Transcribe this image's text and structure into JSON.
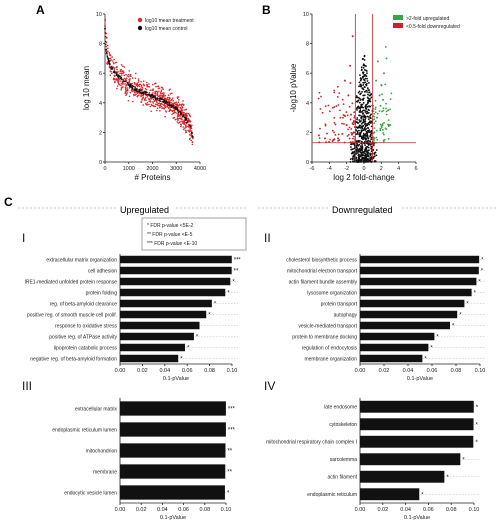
{
  "colors": {
    "treatment": "#e0262b",
    "control": "#111111",
    "upregulated": "#3aa548",
    "downregulated": "#d01f26",
    "bar": "#111111",
    "threshold": "#d01f26"
  },
  "panel_labels": {
    "a": "A",
    "b": "B",
    "c": "C"
  },
  "sections": {
    "up": "Upregulated",
    "down": "Downregulated"
  },
  "chart_data": [
    {
      "id": "A",
      "type": "scatter",
      "xlabel": "# Proteins",
      "ylabel": "log 10 mean",
      "xlim": [
        0,
        4000
      ],
      "ylim": [
        0,
        10
      ],
      "xticks": [
        "0",
        "1000",
        "2000",
        "3000",
        "4000"
      ],
      "yticks": [
        "0",
        "2",
        "4",
        "6",
        "8",
        "10"
      ],
      "legend": [
        "log10 mean treatment",
        "log10 mean control"
      ],
      "legend_position": "top-right",
      "series": [
        {
          "name": "log10 mean treatment",
          "x": [
            0,
            50,
            100,
            200,
            300,
            500,
            700,
            1000,
            1300,
            1600,
            1900,
            2200,
            2500,
            2800,
            3000,
            3200,
            3400,
            3600,
            3700
          ],
          "y": [
            9.2,
            7.8,
            7.2,
            6.6,
            6.3,
            5.9,
            5.6,
            5.2,
            4.9,
            4.7,
            4.5,
            4.3,
            4.1,
            3.8,
            3.6,
            3.3,
            2.9,
            2.3,
            1.6
          ]
        },
        {
          "name": "log10 mean control",
          "x": [
            0,
            50,
            100,
            200,
            300,
            500,
            700,
            1000,
            1300,
            1600,
            1900,
            2200,
            2500,
            2800,
            3000,
            3200,
            3400,
            3600,
            3700
          ],
          "y": [
            9.0,
            7.6,
            7.1,
            6.6,
            6.3,
            5.9,
            5.6,
            5.2,
            4.9,
            4.7,
            4.5,
            4.3,
            4.1,
            3.8,
            3.6,
            3.3,
            2.9,
            2.4,
            1.7
          ]
        }
      ]
    },
    {
      "id": "B",
      "type": "scatter",
      "xlabel": "log 2 fold-change",
      "ylabel": "-log10 pValue",
      "xlim": [
        -6,
        6
      ],
      "ylim": [
        0,
        10
      ],
      "xticks": [
        "-6",
        "-4",
        "-2",
        "0",
        "2",
        "4",
        "6"
      ],
      "yticks": [
        "0",
        "2",
        "4",
        "6",
        "8",
        "10"
      ],
      "thresholds": {
        "x": [
          -1,
          1
        ],
        "y": 1.3
      },
      "legend": [
        ">2-fold upregulated",
        "<0.5-fold downregulated"
      ],
      "legend_position": "top-right",
      "series": [
        {
          "name": ">2-fold upregulated",
          "x": [
            1.2,
            1.5,
            1.8,
            2.0,
            2.3,
            2.6,
            1.4,
            1.9,
            2.2,
            3.0,
            1.6,
            2.8
          ],
          "y": [
            2.0,
            3.0,
            4.5,
            5.2,
            6.0,
            7.0,
            5.5,
            3.8,
            4.2,
            2.5,
            6.8,
            3.5
          ]
        },
        {
          "name": "<0.5-fold downregulated",
          "x": [
            -1.2,
            -1.5,
            -2.0,
            -2.5,
            -3.0,
            -3.5,
            -4.5,
            -5.2,
            -1.8,
            -2.2,
            -1.3,
            -1.6
          ],
          "y": [
            2.0,
            3.2,
            2.5,
            1.9,
            1.6,
            1.5,
            1.6,
            1.8,
            4.5,
            5.5,
            8.5,
            6.5
          ]
        }
      ]
    },
    {
      "id": "I",
      "type": "bar",
      "orientation": "horizontal",
      "xlabel": "0.1-pValue",
      "xlim": [
        0,
        0.1
      ],
      "xticks": [
        "0.00",
        "0.02",
        "0.04",
        "0.06",
        "0.08",
        "0.10"
      ],
      "categories": [
        "extracellular matrix organization",
        "cell adhesion",
        "IRE1-mediated unfolded protein response",
        "protein folding",
        "reg. of beta-amyloid clearance",
        "positive reg. of smooth muscle cell prolif.",
        "response to oxidative stress",
        "positive reg. of ATPase activity",
        "lipoprotein catabolic process",
        "negative reg. of beta-amyloid formation"
      ],
      "values": [
        0.0998,
        0.0997,
        0.0985,
        0.094,
        0.082,
        0.077,
        0.071,
        0.066,
        0.058,
        0.052
      ],
      "stars": [
        "***",
        "**",
        "*",
        "*",
        "*",
        "*",
        "",
        "*",
        "*",
        "*"
      ]
    },
    {
      "id": "II",
      "type": "bar",
      "orientation": "horizontal",
      "xlabel": "0.1-pValue",
      "xlim": [
        0,
        0.1
      ],
      "xticks": [
        "0.00",
        "0.02",
        "0.04",
        "0.06",
        "0.08",
        "0.10"
      ],
      "categories": [
        "cholesterol biosynthetic process",
        "mitochondrial electron transport",
        "actin filament bundle assembly",
        "lysosome organization",
        "protein transport",
        "autophagy",
        "vesicle-mediated transport",
        "protein to membrane docking",
        "regulation of endocytosis",
        "membrane organization"
      ],
      "values": [
        0.0993,
        0.099,
        0.097,
        0.093,
        0.087,
        0.081,
        0.075,
        0.062,
        0.057,
        0.052
      ],
      "stars": [
        "*",
        "*",
        "*",
        "*",
        "*",
        "*",
        "*",
        "*",
        "*",
        "*"
      ]
    },
    {
      "id": "III",
      "type": "bar",
      "orientation": "horizontal",
      "xlabel": "0.1-pValue",
      "xlim": [
        0,
        0.1
      ],
      "xticks": [
        "0.00",
        "0.02",
        "0.04",
        "0.06",
        "0.08",
        "0.10"
      ],
      "categories": [
        "extracellular matrix",
        "endoplasmic reticulum lumen",
        "mitochondrion",
        "membrane",
        "endocytic vesicle lumen"
      ],
      "values": [
        0.0999,
        0.0999,
        0.0995,
        0.0993,
        0.099
      ],
      "stars": [
        "***",
        "***",
        "**",
        "**",
        "*"
      ]
    },
    {
      "id": "IV",
      "type": "bar",
      "orientation": "horizontal",
      "xlabel": "0.1-pValue",
      "xlim": [
        0,
        0.1
      ],
      "xticks": [
        "0.00",
        "0.02",
        "0.04",
        "0.06",
        "0.08",
        "0.10"
      ],
      "categories": [
        "late endosome",
        "cytoskeleton",
        "mitochondrial respiratory chain complex I",
        "sarcolemma",
        "actin filament",
        "endoplasmic reticulum"
      ],
      "values": [
        0.0998,
        0.0996,
        0.0994,
        0.088,
        0.074,
        0.052
      ],
      "stars": [
        "*",
        "*",
        "*",
        "*",
        "*",
        "*"
      ]
    }
  ],
  "fdr_legend": [
    "* FDR p-value <5E-2",
    "** FDR p-value <E-5",
    "*** FDR p-value <E-10"
  ]
}
